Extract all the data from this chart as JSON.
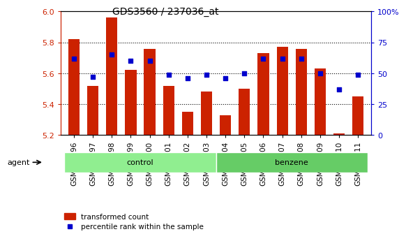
{
  "title": "GDS3560 / 237036_at",
  "samples": [
    "GSM243796",
    "GSM243797",
    "GSM243798",
    "GSM243799",
    "GSM243800",
    "GSM243801",
    "GSM243802",
    "GSM243803",
    "GSM243804",
    "GSM243805",
    "GSM243806",
    "GSM243807",
    "GSM243808",
    "GSM243809",
    "GSM243810",
    "GSM243811"
  ],
  "transformed_count": [
    5.82,
    5.52,
    5.96,
    5.62,
    5.76,
    5.52,
    5.35,
    5.48,
    5.33,
    5.5,
    5.73,
    5.77,
    5.76,
    5.63,
    5.21,
    5.45
  ],
  "percentile_rank": [
    62,
    47,
    65,
    60,
    60,
    49,
    46,
    49,
    46,
    50,
    62,
    62,
    62,
    50,
    37,
    49
  ],
  "bar_color": "#cc2200",
  "dot_color": "#0000cc",
  "ylim_left": [
    5.2,
    6.0
  ],
  "ylim_right": [
    0,
    100
  ],
  "yticks_left": [
    5.2,
    5.4,
    5.6,
    5.8,
    6.0
  ],
  "yticks_right": [
    0,
    25,
    50,
    75,
    100
  ],
  "ytick_labels_right": [
    "0",
    "25",
    "50",
    "75",
    "100%"
  ],
  "groups": [
    {
      "label": "control",
      "start": 0,
      "end": 8,
      "color": "#90ee90"
    },
    {
      "label": "benzene",
      "start": 8,
      "end": 16,
      "color": "#66cc66"
    }
  ],
  "agent_label": "agent",
  "legend_bar_label": "transformed count",
  "legend_dot_label": "percentile rank within the sample",
  "grid_dotted_at": [
    5.4,
    5.6,
    5.8
  ],
  "bar_bottom": 5.2,
  "bar_width": 0.6
}
